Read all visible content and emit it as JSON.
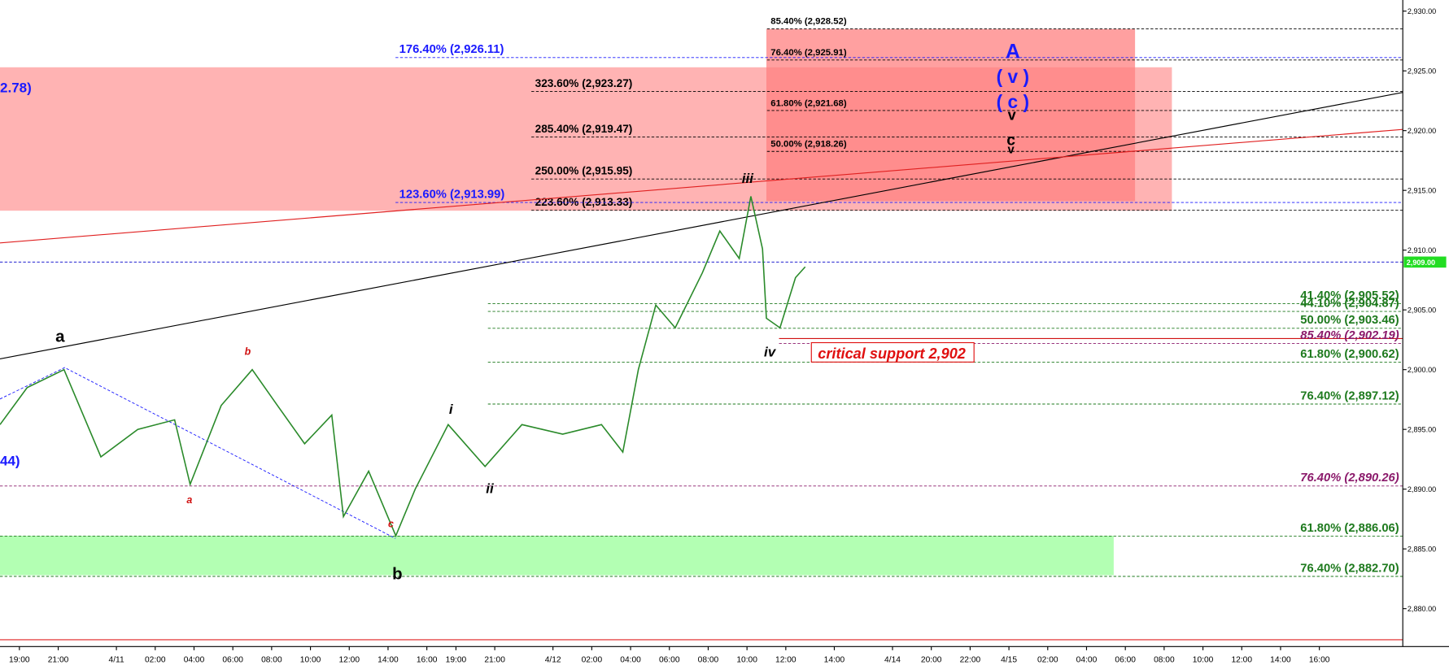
{
  "chart_data": {
    "type": "line",
    "xlim": [
      0,
      72.3
    ],
    "ylim": [
      2876.83,
      2930.93
    ],
    "xticks": [
      {
        "value": 1,
        "label": "19:00"
      },
      {
        "value": 3,
        "label": "21:00"
      },
      {
        "value": 6,
        "label": "4/11"
      },
      {
        "value": 8,
        "label": "02:00"
      },
      {
        "value": 10,
        "label": "04:00"
      },
      {
        "value": 12,
        "label": "06:00"
      },
      {
        "value": 14,
        "label": "08:00"
      },
      {
        "value": 16,
        "label": "10:00"
      },
      {
        "value": 18,
        "label": "12:00"
      },
      {
        "value": 20,
        "label": "14:00"
      },
      {
        "value": 22,
        "label": "16:00"
      },
      {
        "value": 23.5,
        "label": "19:00"
      },
      {
        "value": 25.5,
        "label": "21:00"
      },
      {
        "value": 28.5,
        "label": "4/12"
      },
      {
        "value": 30.5,
        "label": "02:00"
      },
      {
        "value": 32.5,
        "label": "04:00"
      },
      {
        "value": 34.5,
        "label": "06:00"
      },
      {
        "value": 36.5,
        "label": "08:00"
      },
      {
        "value": 38.5,
        "label": "10:00"
      },
      {
        "value": 40.5,
        "label": "12:00"
      },
      {
        "value": 43,
        "label": "14:00"
      },
      {
        "value": 46,
        "label": "4/14"
      },
      {
        "value": 48,
        "label": "20:00"
      },
      {
        "value": 50,
        "label": "22:00"
      },
      {
        "value": 52,
        "label": "4/15"
      },
      {
        "value": 54,
        "label": "02:00"
      },
      {
        "value": 56,
        "label": "04:00"
      },
      {
        "value": 58,
        "label": "06:00"
      },
      {
        "value": 60,
        "label": "08:00"
      },
      {
        "value": 62,
        "label": "10:00"
      },
      {
        "value": 64,
        "label": "12:00"
      },
      {
        "value": 66,
        "label": "14:00"
      },
      {
        "value": 68,
        "label": "16:00"
      }
    ],
    "yticks": [
      {
        "value": 2880,
        "label": "2,880.00"
      },
      {
        "value": 2885,
        "label": "2,885.00"
      },
      {
        "value": 2890,
        "label": "2,890.00"
      },
      {
        "value": 2895,
        "label": "2,895.00"
      },
      {
        "value": 2900,
        "label": "2,900.00"
      },
      {
        "value": 2905,
        "label": "2,905.00"
      },
      {
        "value": 2910,
        "label": "2,910.00"
      },
      {
        "value": 2915,
        "label": "2,915.00"
      },
      {
        "value": 2920,
        "label": "2,920.00"
      },
      {
        "value": 2925,
        "label": "2,925.00"
      },
      {
        "value": 2930,
        "label": "2,930.00"
      }
    ],
    "series": [
      {
        "color": "#2a8a2a",
        "x": [
          0,
          1.4,
          3.3,
          5.2,
          7.1,
          9.0,
          9.8,
          11.4,
          13.0,
          14.3,
          15.7,
          17.1,
          17.7,
          19.0,
          20.4,
          21.4,
          23.1,
          25.0,
          26.9,
          29.0,
          31.0,
          32.1,
          32.9,
          33.8,
          34.8,
          36.2,
          37.1,
          38.1,
          38.7,
          39.3,
          39.5,
          40.2,
          41.0,
          41.5
        ],
        "values": [
          2895.4,
          2898.5,
          2900.0,
          2892.7,
          2895.0,
          2895.8,
          2890.4,
          2897.0,
          2900.0,
          2897.0,
          2893.8,
          2896.2,
          2887.7,
          2891.5,
          2886.1,
          2890.0,
          2895.4,
          2891.9,
          2895.4,
          2894.6,
          2895.4,
          2893.1,
          2900.0,
          2905.4,
          2903.5,
          2908.1,
          2911.6,
          2909.3,
          2914.5,
          2910.1,
          2904.3,
          2903.5,
          2907.7,
          2908.6
        ]
      }
    ],
    "last_price": {
      "value": 2909.0,
      "label": "2,909.00"
    },
    "zones": [
      {
        "x": [
          0,
          60.4
        ],
        "range": [
          2913.3,
          2925.3
        ],
        "color": "#ffb3b3"
      },
      {
        "x": [
          39.5,
          58.5
        ],
        "range": [
          2914.1,
          2928.5
        ],
        "color": "#ff8080"
      },
      {
        "x": [
          0,
          57.4
        ],
        "range": [
          2882.8,
          2886.1
        ],
        "color": "#b3ffb3"
      }
    ],
    "trend_lines": [
      {
        "x": [
          0,
          72.3
        ],
        "values": [
          2900.9,
          2923.2
        ],
        "color": "#000000"
      },
      {
        "x": [
          0,
          72.3
        ],
        "values": [
          2910.6,
          2920.1
        ],
        "color": "#e02020"
      }
    ],
    "reference_lines": [
      {
        "value": 2909.0,
        "color": "#2020d0"
      },
      {
        "value": 2902.6,
        "color": "#d01010"
      },
      {
        "value": 2877.4,
        "color": "#e02020"
      }
    ],
    "levels": [
      {
        "label": "85.40% (2,928.52)",
        "value": 2928.52,
        "color": "#000000"
      },
      {
        "label": "76.40% (2,925.91)",
        "value": 2925.91,
        "color": "#000000"
      },
      {
        "label": "61.80% (2,921.68)",
        "value": 2921.68,
        "color": "#000000"
      },
      {
        "label": "50.00% (2,918.26)",
        "value": 2918.26,
        "color": "#000000"
      },
      {
        "label": "323.60% (2,923.27)",
        "value": 2923.27,
        "color": "#000000"
      },
      {
        "label": "285.40% (2,919.47)",
        "value": 2919.47,
        "color": "#000000"
      },
      {
        "label": "250.00% (2,915.95)",
        "value": 2915.95,
        "color": "#000000"
      },
      {
        "label": "223.60% (2,913.33)",
        "value": 2913.33,
        "color": "#000000"
      },
      {
        "label": "176.40% (2,926.11)",
        "value": 2926.11,
        "color": "#1a1aff"
      },
      {
        "label": "123.60% (2,913.99)",
        "value": 2913.99,
        "color": "#1a1aff"
      },
      {
        "label": "41.40% (2,905.52)",
        "value": 2905.52,
        "color": "#1e7a1e"
      },
      {
        "label": "44.10% (2,904.87)",
        "value": 2904.87,
        "color": "#1e7a1e"
      },
      {
        "label": "50.00% (2,903.46)",
        "value": 2903.46,
        "color": "#1e7a1e"
      },
      {
        "label": "85.40% (2,902.19)",
        "value": 2902.19,
        "color": "#8b1a6b"
      },
      {
        "label": "61.80% (2,900.62)",
        "value": 2900.62,
        "color": "#1e7a1e"
      },
      {
        "label": "76.40% (2,897.12)",
        "value": 2897.12,
        "color": "#1e7a1e"
      },
      {
        "label": "76.40% (2,890.26)",
        "value": 2890.26,
        "color": "#8b1a6b"
      },
      {
        "label": "61.80% (2,886.06)",
        "value": 2886.06,
        "color": "#1e7a1e"
      },
      {
        "label": "76.40% (2,882.70)",
        "value": 2882.7,
        "color": "#1e7a1e"
      }
    ],
    "annotations": [
      "2.78)",
      "44)",
      "a",
      "b",
      "a",
      "c",
      "b",
      "i",
      "ii",
      "iii",
      "iv",
      "A",
      "( v )",
      "( c )",
      "v",
      "c",
      "v",
      "critical support 2,902"
    ]
  }
}
